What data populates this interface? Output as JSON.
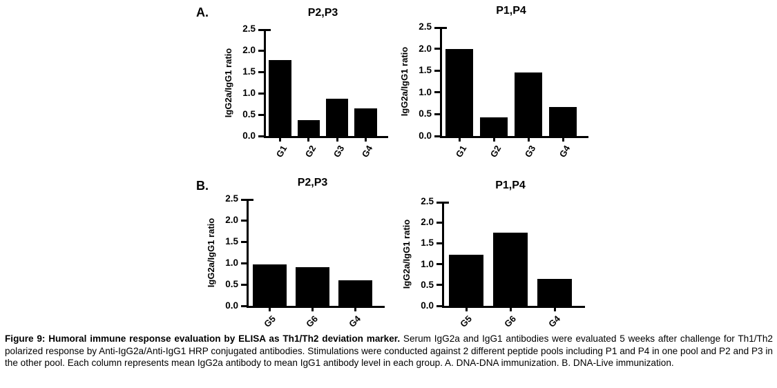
{
  "figure": {
    "panel_a_label": "A.",
    "panel_b_label": "B.",
    "caption_bold": "Figure 9: Humoral immune response evaluation by ELISA as Th1/Th2 deviation marker.",
    "caption_rest": " Serum IgG2a and IgG1 antibodies were evaluated 5 weeks after challenge for Th1/Th2 polarized response by Anti-IgG2a/Anti-IgG1 HRP conjugated antibodies. Stimulations were conducted against 2 different peptide pools including P1 and P4 in one pool and P2 and P3 in the other pool. Each column represents mean IgG2a antibody to mean IgG1 antibody level in each group. A. DNA-DNA immunization. B. DNA-Live immunization."
  },
  "colors": {
    "bar": "#000000",
    "axis": "#000000",
    "text": "#000000",
    "background": "#ffffff"
  },
  "chart_data": [
    {
      "id": "panel-a-p2p3",
      "type": "bar",
      "panel": "A",
      "title": "P2,P3",
      "categories": [
        "G1",
        "G2",
        "G3",
        "G4"
      ],
      "values": [
        1.78,
        0.37,
        0.87,
        0.65
      ],
      "xlabel": "",
      "ylabel": "IgG2a/IgG1 ratio",
      "ylim": [
        0,
        2.5
      ],
      "yticks": [
        0.0,
        0.5,
        1.0,
        1.5,
        2.0,
        2.5
      ],
      "grid": false,
      "legend": "none",
      "bar_color": "#000000"
    },
    {
      "id": "panel-a-p1p4",
      "type": "bar",
      "panel": "A",
      "title": "P1,P4",
      "categories": [
        "G1",
        "G2",
        "G3",
        "G4"
      ],
      "values": [
        2.0,
        0.42,
        1.46,
        0.66
      ],
      "xlabel": "",
      "ylabel": "IgG2a/IgG1 ratio",
      "ylim": [
        0,
        2.5
      ],
      "yticks": [
        0.0,
        0.5,
        1.0,
        1.5,
        2.0,
        2.5
      ],
      "grid": false,
      "legend": "none",
      "bar_color": "#000000"
    },
    {
      "id": "panel-b-p2p3",
      "type": "bar",
      "panel": "B",
      "title": "P2,P3",
      "categories": [
        "G5",
        "G6",
        "G4"
      ],
      "values": [
        0.97,
        0.9,
        0.59
      ],
      "xlabel": "",
      "ylabel": "IgG2a/IgG1 ratio",
      "ylim": [
        0,
        2.5
      ],
      "yticks": [
        0.0,
        0.5,
        1.0,
        1.5,
        2.0,
        2.5
      ],
      "grid": false,
      "legend": "none",
      "bar_color": "#000000"
    },
    {
      "id": "panel-b-p1p4",
      "type": "bar",
      "panel": "B",
      "title": "P1,P4",
      "categories": [
        "G5",
        "G6",
        "G4"
      ],
      "values": [
        1.22,
        1.75,
        0.65
      ],
      "xlabel": "",
      "ylabel": "IgG2a/IgG1 ratio",
      "ylim": [
        0,
        2.5
      ],
      "yticks": [
        0.0,
        0.5,
        1.0,
        1.5,
        2.0,
        2.5
      ],
      "grid": false,
      "legend": "none",
      "bar_color": "#000000"
    }
  ]
}
